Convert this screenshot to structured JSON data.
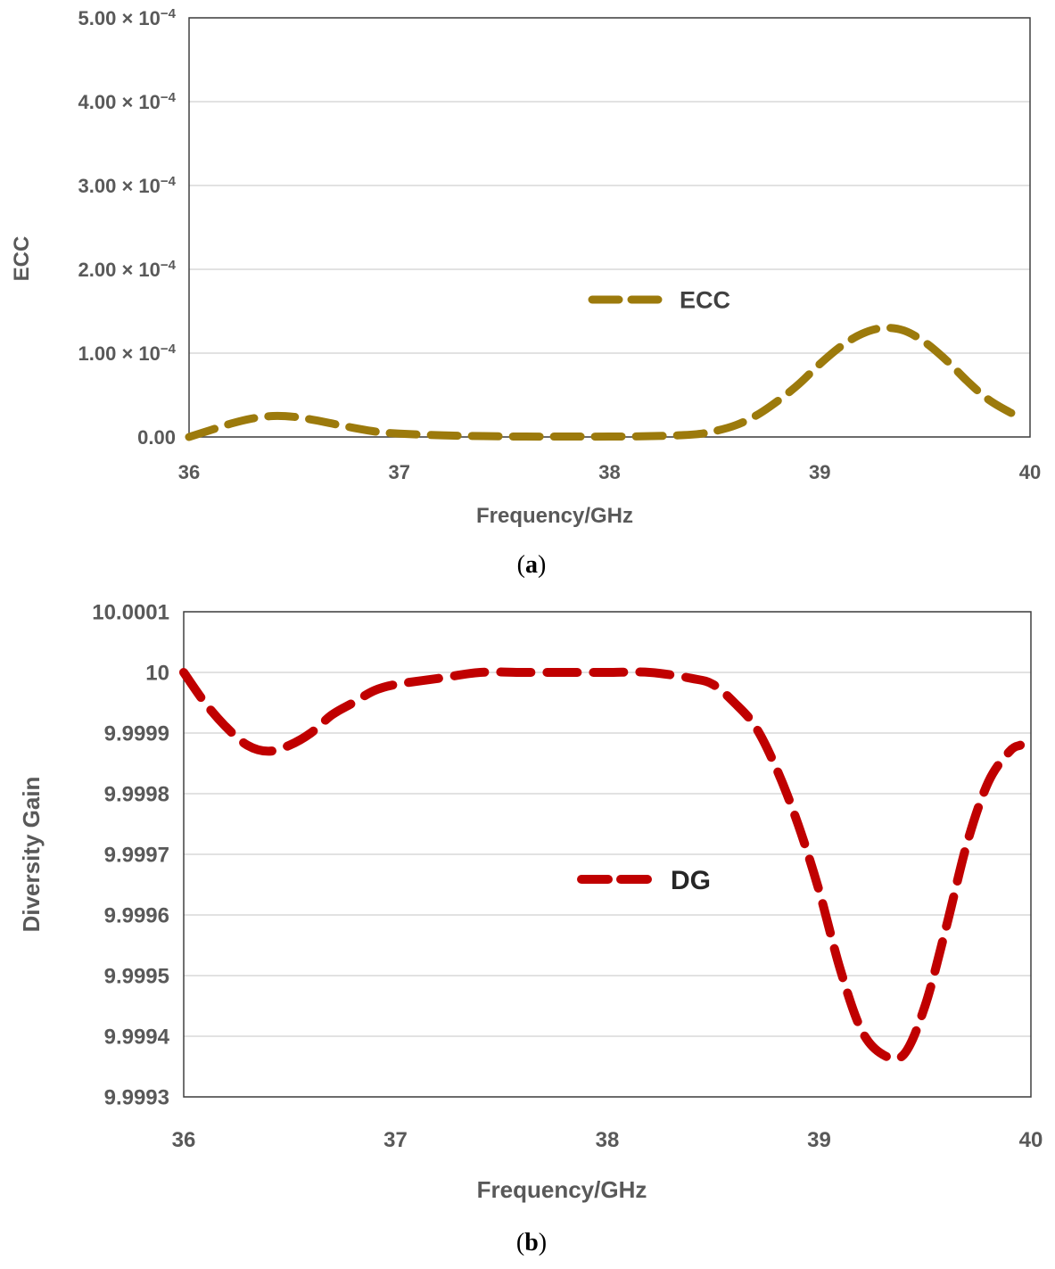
{
  "chart_data": [
    {
      "type": "line",
      "panel_label": "a",
      "title": "",
      "xlabel": "Frequency/GHz",
      "ylabel": "ECC",
      "xlim": [
        36,
        40
      ],
      "ylim": [
        0,
        0.0005
      ],
      "x_ticks": [
        "36",
        "37",
        "38",
        "39",
        "40"
      ],
      "y_ticks": [
        {
          "value": 0,
          "label": "0.00",
          "exponent": ""
        },
        {
          "value": 0.0001,
          "label": "1.00 × 10",
          "exponent": "−4"
        },
        {
          "value": 0.0002,
          "label": "2.00 × 10",
          "exponent": "−4"
        },
        {
          "value": 0.0003,
          "label": "3.00 × 10",
          "exponent": "−4"
        },
        {
          "value": 0.0004,
          "label": "4.00 × 10",
          "exponent": "−4"
        },
        {
          "value": 0.0005,
          "label": "5.00 × 10",
          "exponent": "−4"
        }
      ],
      "grid": true,
      "legend_position": "center",
      "series": [
        {
          "name": "ECC",
          "color": "#9C7A0C",
          "style": "dashed",
          "x": [
            36.0,
            36.1,
            36.2,
            36.3,
            36.4,
            36.5,
            36.6,
            36.7,
            36.8,
            36.9,
            37.0,
            37.2,
            37.4,
            37.6,
            37.8,
            38.0,
            38.2,
            38.4,
            38.5,
            38.6,
            38.7,
            38.8,
            38.9,
            39.0,
            39.1,
            39.2,
            39.3,
            39.4,
            39.5,
            39.6,
            39.7,
            39.8,
            39.9,
            39.95
          ],
          "y": [
            0.0,
            8e-06,
            1.6e-05,
            2.2e-05,
            2.5e-05,
            2.4e-05,
            2e-05,
            1.5e-05,
            1e-05,
            6e-06,
            4e-06,
            2e-06,
            1e-06,
            5e-07,
            5e-07,
            5e-07,
            1e-06,
            3e-06,
            7e-06,
            1.4e-05,
            2.6e-05,
            4.3e-05,
            6.3e-05,
            8.7e-05,
            0.000108,
            0.000123,
            0.00013,
            0.000127,
            0.000113,
            9.2e-05,
            6.7e-05,
            4.5e-05,
            3e-05,
            2.5e-05
          ]
        }
      ]
    },
    {
      "type": "line",
      "panel_label": "b",
      "title": "",
      "xlabel": "Frequency/GHz",
      "ylabel": "Diversity Gain",
      "xlim": [
        36,
        40
      ],
      "ylim": [
        9.9993,
        10.0001
      ],
      "x_ticks": [
        "36",
        "37",
        "38",
        "39",
        "40"
      ],
      "y_ticks": [
        {
          "value": 9.9993,
          "label": "9.9993"
        },
        {
          "value": 9.9994,
          "label": "9.9994"
        },
        {
          "value": 9.9995,
          "label": "9.9995"
        },
        {
          "value": 9.9996,
          "label": "9.9996"
        },
        {
          "value": 9.9997,
          "label": "9.9997"
        },
        {
          "value": 9.9998,
          "label": "9.9998"
        },
        {
          "value": 9.9999,
          "label": "9.9999"
        },
        {
          "value": 10.0,
          "label": "10"
        },
        {
          "value": 10.0001,
          "label": "10.0001"
        }
      ],
      "grid": true,
      "legend_position": "center",
      "series": [
        {
          "name": "DG",
          "color": "#C00000",
          "style": "dashed",
          "x": [
            36.0,
            36.1,
            36.2,
            36.3,
            36.4,
            36.5,
            36.6,
            36.7,
            36.8,
            36.9,
            37.0,
            37.2,
            37.4,
            37.6,
            37.8,
            38.0,
            38.2,
            38.4,
            38.5,
            38.6,
            38.7,
            38.8,
            38.9,
            39.0,
            39.1,
            39.2,
            39.3,
            39.4,
            39.5,
            39.6,
            39.7,
            39.8,
            39.9,
            39.95
          ],
          "y": [
            10.0,
            9.99995,
            9.99991,
            9.99988,
            9.99987,
            9.99988,
            9.9999,
            9.99993,
            9.99995,
            9.99997,
            9.99998,
            9.99999,
            10.0,
            10.0,
            10.0,
            10.0,
            10.0,
            9.99999,
            9.99998,
            9.99995,
            9.99991,
            9.99984,
            9.99975,
            9.99964,
            9.99951,
            9.99941,
            9.99937,
            9.99937,
            9.99945,
            9.99958,
            9.99972,
            9.99982,
            9.99987,
            9.99988
          ]
        }
      ]
    }
  ]
}
